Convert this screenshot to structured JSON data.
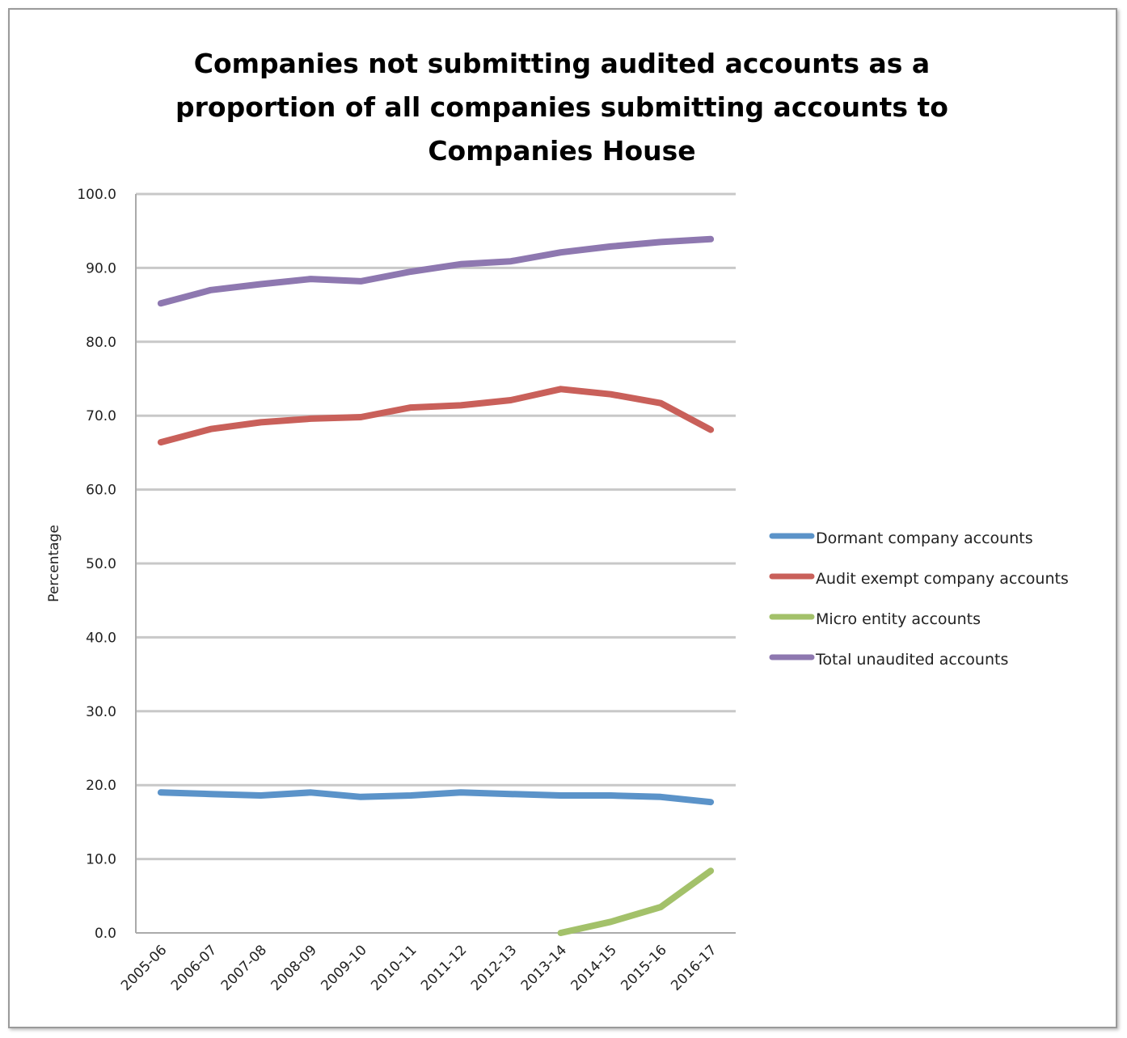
{
  "chart_data": {
    "type": "line",
    "title": "Companies not submitting audited accounts as a proportion of all companies submitting accounts to Companies House",
    "xlabel": "",
    "ylabel": "Percentage",
    "ylim": [
      0,
      100
    ],
    "yticks": [
      "0.0",
      "10.0",
      "20.0",
      "30.0",
      "40.0",
      "50.0",
      "60.0",
      "70.0",
      "80.0",
      "90.0",
      "100.0"
    ],
    "grid": true,
    "legend_position": "right",
    "categories": [
      "2005-06",
      "2006-07",
      "2007-08",
      "2008-09",
      "2009-10",
      "2010-11",
      "2011-12",
      "2012-13",
      "2013-14",
      "2014-15",
      "2015-16",
      "2016-17"
    ],
    "series": [
      {
        "name": "Dormant company accounts",
        "color": "#5b93c9",
        "values": [
          19.0,
          18.8,
          18.6,
          19.0,
          18.4,
          18.6,
          19.0,
          18.8,
          18.6,
          18.6,
          18.4,
          17.7
        ]
      },
      {
        "name": "Audit exempt company accounts",
        "color": "#c9605a",
        "values": [
          66.4,
          68.2,
          69.1,
          69.6,
          69.8,
          71.1,
          71.4,
          72.1,
          73.6,
          72.9,
          71.7,
          68.1
        ]
      },
      {
        "name": "Micro entity accounts",
        "color": "#a3c16a",
        "values": [
          null,
          null,
          null,
          null,
          null,
          null,
          null,
          null,
          0.0,
          1.5,
          3.5,
          8.4
        ]
      },
      {
        "name": "Total unaudited accounts",
        "color": "#8e78b0",
        "values": [
          85.2,
          87.0,
          87.8,
          88.5,
          88.2,
          89.5,
          90.5,
          90.9,
          92.1,
          92.9,
          93.5,
          93.9
        ]
      }
    ]
  }
}
